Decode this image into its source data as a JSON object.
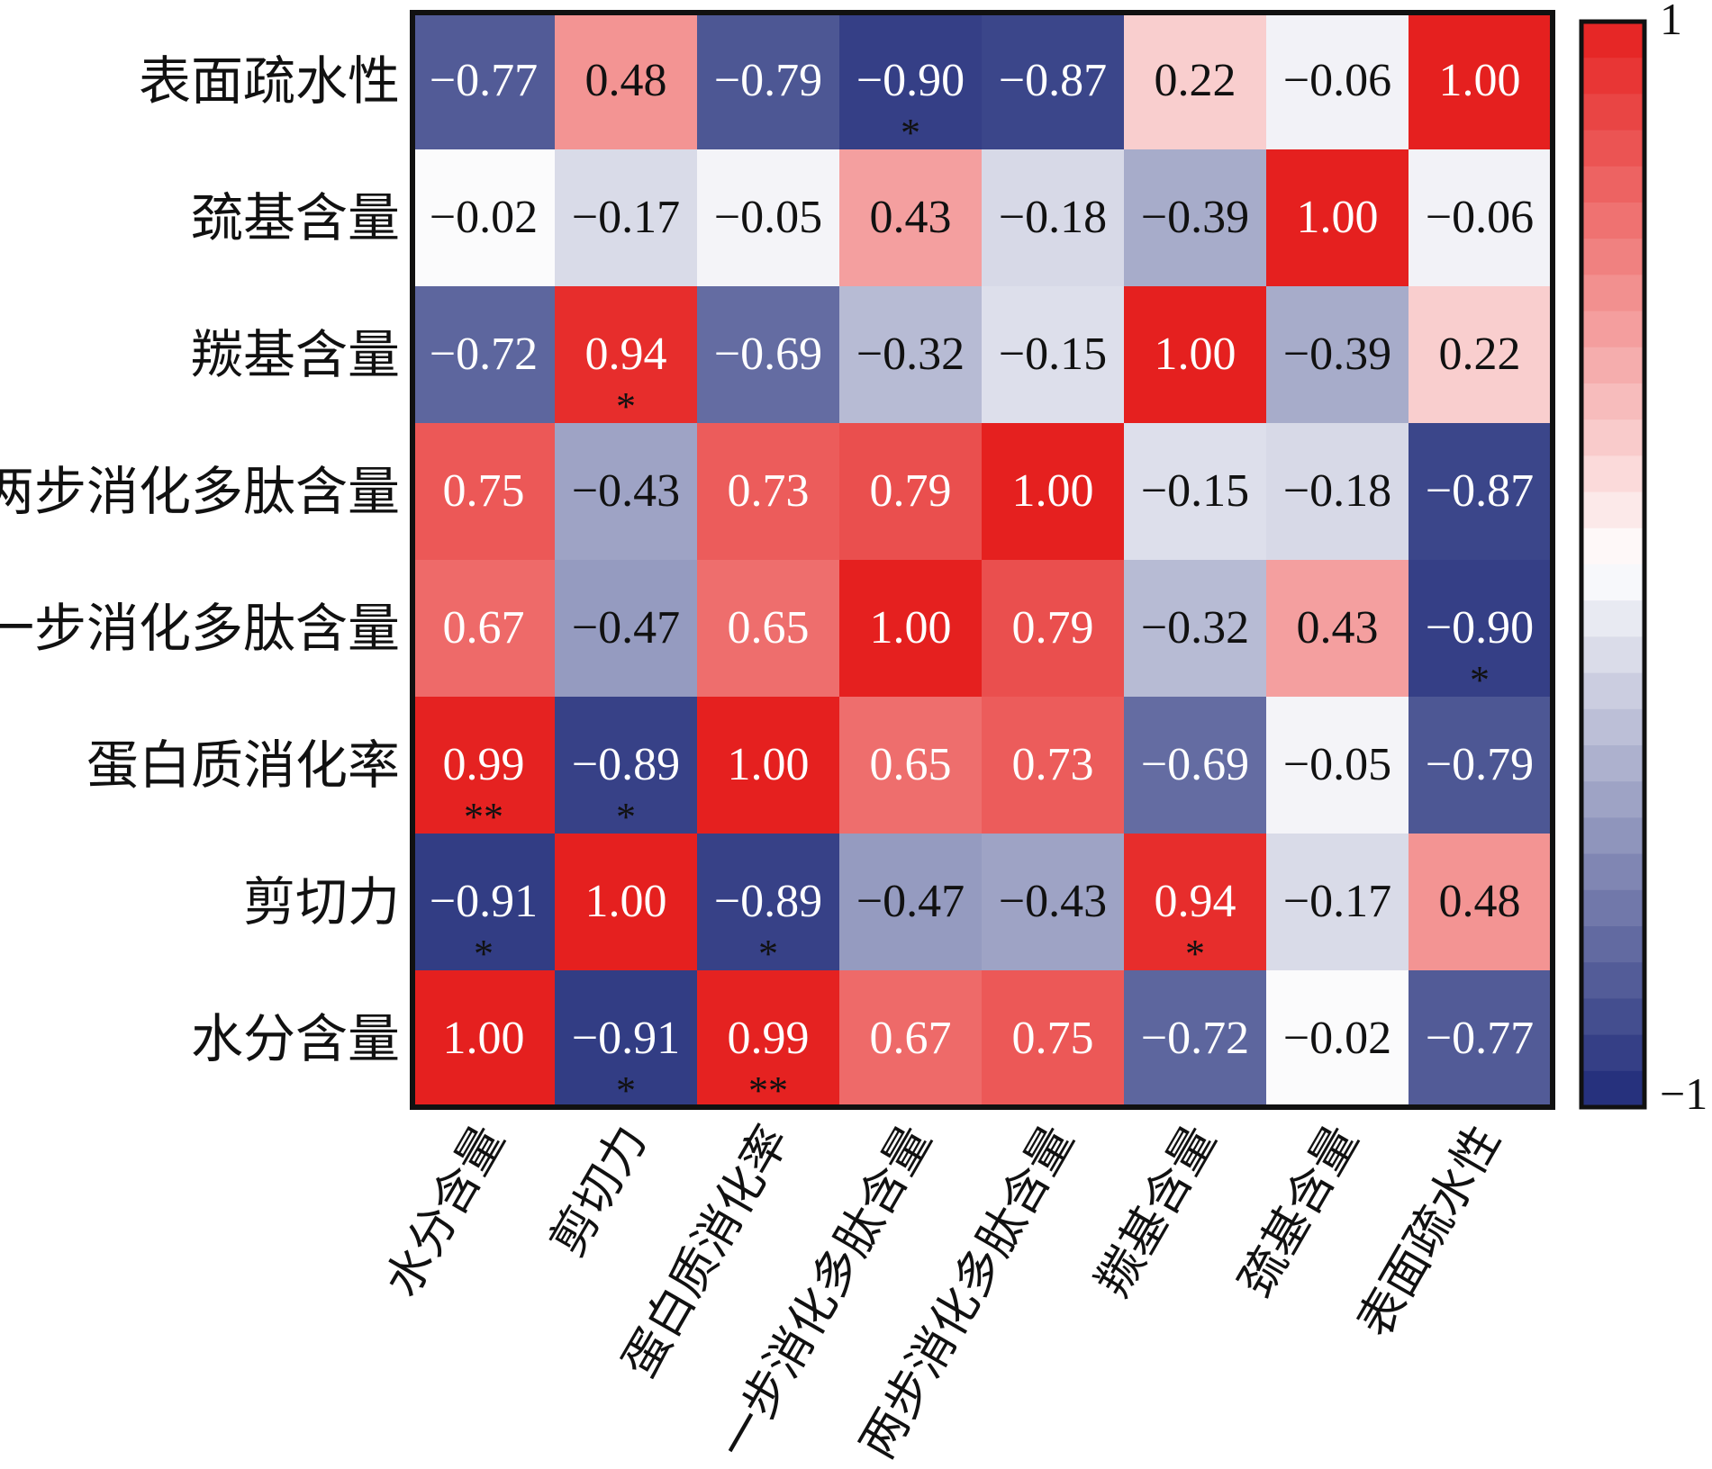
{
  "chart_data": {
    "type": "heatmap",
    "title": "",
    "xlabel": "",
    "ylabel": "",
    "x_categories": [
      "水分含量",
      "剪切力",
      "蛋白质消化率",
      "一步消化多肽含量",
      "两步消化多肽含量",
      "羰基含量",
      "巯基含量",
      "表面疏水性"
    ],
    "y_categories": [
      "表面疏水性",
      "巯基含量",
      "羰基含量",
      "两步消化多肽含量",
      "一步消化多肽含量",
      "蛋白质消化率",
      "剪切力",
      "水分含量"
    ],
    "value_labels": [
      [
        "−0.77",
        "0.48",
        "−0.79",
        "−0.90",
        "−0.87",
        "0.22",
        "−0.06",
        "1.00"
      ],
      [
        "−0.02",
        "−0.17",
        "−0.05",
        "0.43",
        "−0.18",
        "−0.39",
        "1.00",
        "−0.06"
      ],
      [
        "−0.72",
        "0.94",
        "−0.69",
        "−0.32",
        "−0.15",
        "1.00",
        "−0.39",
        "0.22"
      ],
      [
        "0.75",
        "−0.43",
        "0.73",
        "0.79",
        "1.00",
        "−0.15",
        "−0.18",
        "−0.87"
      ],
      [
        "0.67",
        "−0.47",
        "0.65",
        "1.00",
        "0.79",
        "−0.32",
        "0.43",
        "−0.90"
      ],
      [
        "0.99",
        "−0.89",
        "1.00",
        "0.65",
        "0.73",
        "−0.69",
        "−0.05",
        "−0.79"
      ],
      [
        "−0.91",
        "1.00",
        "−0.89",
        "−0.47",
        "−0.43",
        "0.94",
        "−0.17",
        "0.48"
      ],
      [
        "1.00",
        "−0.91",
        "0.99",
        "0.67",
        "0.75",
        "−0.72",
        "−0.02",
        "−0.77"
      ]
    ],
    "values": [
      [
        -0.77,
        0.48,
        -0.79,
        -0.9,
        -0.87,
        0.22,
        -0.06,
        1.0
      ],
      [
        -0.02,
        -0.17,
        -0.05,
        0.43,
        -0.18,
        -0.39,
        1.0,
        -0.06
      ],
      [
        -0.72,
        0.94,
        -0.69,
        -0.32,
        -0.15,
        1.0,
        -0.39,
        0.22
      ],
      [
        0.75,
        -0.43,
        0.73,
        0.79,
        1.0,
        -0.15,
        -0.18,
        -0.87
      ],
      [
        0.67,
        -0.47,
        0.65,
        1.0,
        0.79,
        -0.32,
        0.43,
        -0.9
      ],
      [
        0.99,
        -0.89,
        1.0,
        0.65,
        0.73,
        -0.69,
        -0.05,
        -0.79
      ],
      [
        -0.91,
        1.0,
        -0.89,
        -0.47,
        -0.43,
        0.94,
        -0.17,
        0.48
      ],
      [
        1.0,
        -0.91,
        0.99,
        0.67,
        0.75,
        -0.72,
        -0.02,
        -0.77
      ]
    ],
    "significance": [
      [
        "",
        "",
        "",
        "*",
        "",
        "",
        "",
        ""
      ],
      [
        "",
        "",
        "",
        "",
        "",
        "",
        "",
        ""
      ],
      [
        "",
        "*",
        "",
        "",
        "",
        "",
        "",
        ""
      ],
      [
        "",
        "",
        "",
        "",
        "",
        "",
        "",
        ""
      ],
      [
        "",
        "",
        "",
        "",
        "",
        "",
        "",
        "*"
      ],
      [
        "**",
        "*",
        "",
        "",
        "",
        "",
        "",
        ""
      ],
      [
        "*",
        "",
        "*",
        "",
        "",
        "*",
        "",
        ""
      ],
      [
        "",
        "*",
        "**",
        "",
        "",
        "",
        "",
        ""
      ]
    ],
    "colorbar": {
      "min": -1,
      "max": 1,
      "max_label": "1",
      "min_label": "−1",
      "steps": 30
    },
    "colors": {
      "low": "#1e2a78",
      "mid": "#ffffff",
      "high": "#e5201f"
    }
  }
}
